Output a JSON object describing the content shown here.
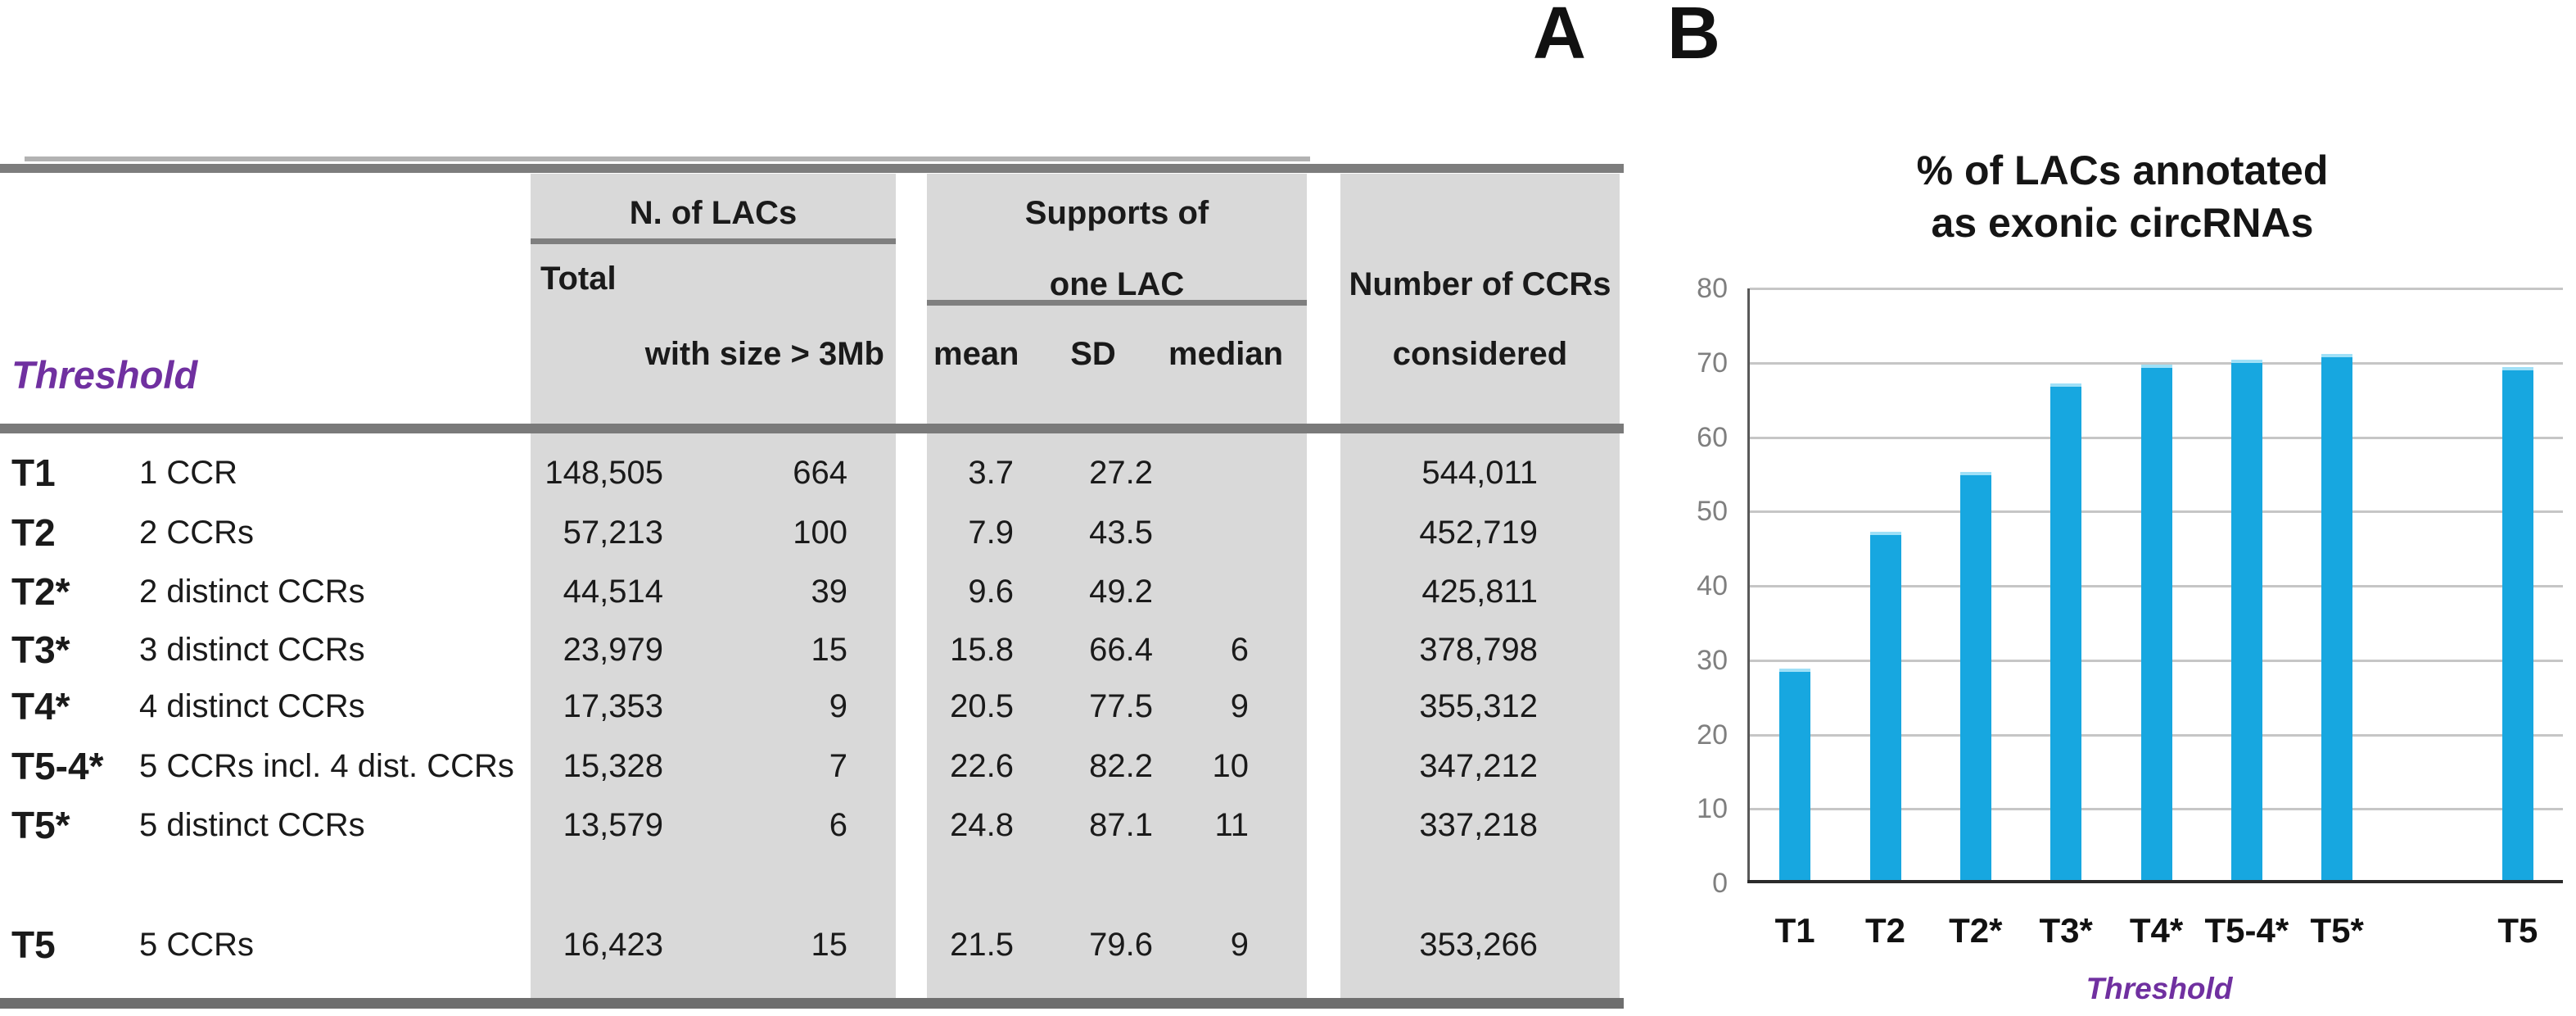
{
  "panel_labels": {
    "a": "A",
    "b": "B"
  },
  "table": {
    "threshold_label": "Threshold",
    "headers": {
      "n_of_lacs": "N. of LACs",
      "total": "Total",
      "with_size": "with size > 3Mb",
      "supports_line1": "Supports of",
      "supports_line2": "one LAC",
      "mean": "mean",
      "sd": "SD",
      "median": "median",
      "ccrs_line1": "Number of CCRs",
      "ccrs_line2": "considered"
    },
    "rows": [
      {
        "code": "T1",
        "desc": "1 CCR",
        "total": "148,505",
        "gt3mb": "664",
        "mean": "3.7",
        "sd": "27.2",
        "median": "",
        "ccrs": "544,011"
      },
      {
        "code": "T2",
        "desc": "2 CCRs",
        "total": "57,213",
        "gt3mb": "100",
        "mean": "7.9",
        "sd": "43.5",
        "median": "",
        "ccrs": "452,719"
      },
      {
        "code": "T2*",
        "desc": "2 distinct CCRs",
        "total": "44,514",
        "gt3mb": "39",
        "mean": "9.6",
        "sd": "49.2",
        "median": "",
        "ccrs": "425,811"
      },
      {
        "code": "T3*",
        "desc": "3 distinct CCRs",
        "total": "23,979",
        "gt3mb": "15",
        "mean": "15.8",
        "sd": "66.4",
        "median": "6",
        "ccrs": "378,798"
      },
      {
        "code": "T4*",
        "desc": "4 distinct CCRs",
        "total": "17,353",
        "gt3mb": "9",
        "mean": "20.5",
        "sd": "77.5",
        "median": "9",
        "ccrs": "355,312"
      },
      {
        "code": "T5-4*",
        "desc": "5 CCRs incl. 4 dist. CCRs",
        "total": "15,328",
        "gt3mb": "7",
        "mean": "22.6",
        "sd": "82.2",
        "median": "10",
        "ccrs": "347,212"
      },
      {
        "code": "T5*",
        "desc": "5 distinct CCRs",
        "total": "13,579",
        "gt3mb": "6",
        "mean": "24.8",
        "sd": "87.1",
        "median": "11",
        "ccrs": "337,218"
      },
      {
        "code": "T5",
        "desc": "5 CCRs",
        "total": "16,423",
        "gt3mb": "15",
        "mean": "21.5",
        "sd": "79.6",
        "median": "9",
        "ccrs": "353,266"
      }
    ]
  },
  "chart_data": {
    "type": "bar",
    "title_line1": "% of LACs annotated",
    "title_line2": "as exonic circRNAs",
    "xlabel": "Threshold",
    "categories": [
      "T1",
      "T2",
      "T2*",
      "T3*",
      "T4*",
      "T5-4*",
      "T5*",
      "",
      "T5"
    ],
    "values": [
      28.9,
      47.3,
      55.3,
      67.2,
      69.7,
      70.4,
      71.2,
      null,
      69.4
    ],
    "ylim": [
      0,
      80
    ],
    "yticks": [
      0,
      10,
      20,
      30,
      40,
      50,
      60,
      70,
      80
    ],
    "grid": true,
    "legend_position": "none",
    "bar_color": "#17a7e0"
  },
  "colors": {
    "band_gray": "#d9d9d9",
    "border_gray": "#7d7d7d",
    "accent_purple": "#7030a0",
    "bar_blue": "#17a7e0",
    "tick_gray": "#7f7f7f"
  }
}
